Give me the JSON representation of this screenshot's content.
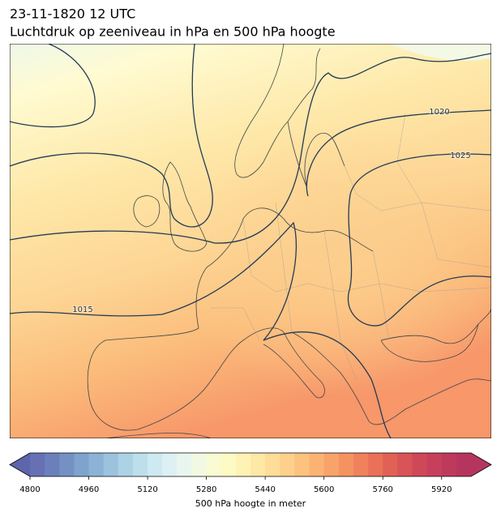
{
  "header": {
    "title": "23-11-1820 12 UTC",
    "subtitle": "Luchtdruk op zeeniveau in hPa en 500 hPa hoogte"
  },
  "map": {
    "isobar_labels": [
      1015,
      1020,
      1025
    ]
  },
  "colorbar": {
    "label": "500 hPa hoogte in meter",
    "range": [
      4800,
      6000
    ],
    "ticks": [
      4800,
      4960,
      5120,
      5280,
      5440,
      5600,
      5760,
      5920
    ],
    "under_color": "#5e65ac",
    "over_color": "#b4365e",
    "colors": [
      "#6670b2",
      "#6b80ba",
      "#7391c3",
      "#7fa3cc",
      "#8cb3d6",
      "#9cc3de",
      "#acd2e5",
      "#bddfec",
      "#cde9f2",
      "#ddf1f5",
      "#e9f6f0",
      "#f2f9e2",
      "#f9fbd2",
      "#fefac4",
      "#fff2b5",
      "#fee8a5",
      "#fddd98",
      "#fdd08b",
      "#fcc27e",
      "#fbb373",
      "#f8a36a",
      "#f59262",
      "#f0815c",
      "#ea7157",
      "#e26155",
      "#d95456",
      "#cf4858",
      "#c6405b",
      "#bd3a5d",
      "#b5355f"
    ]
  }
}
